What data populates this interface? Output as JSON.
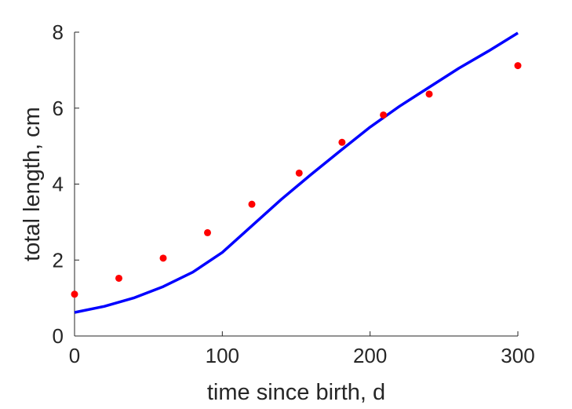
{
  "chart_data": {
    "type": "scatter",
    "title": "",
    "xlabel": "time since birth, d",
    "ylabel": "total length, cm",
    "xlim": [
      0,
      300
    ],
    "ylim": [
      0,
      8
    ],
    "xticks": [
      0,
      100,
      200,
      300
    ],
    "yticks": [
      0,
      2,
      4,
      6,
      8
    ],
    "grid": false,
    "legend": "none",
    "series": [
      {
        "kind": "points",
        "color": "#ff0000",
        "x": [
          0,
          30,
          60,
          90,
          120,
          152,
          181,
          209,
          240,
          300
        ],
        "y": [
          1.1,
          1.52,
          2.05,
          2.72,
          3.47,
          4.29,
          5.1,
          5.82,
          6.37,
          7.12
        ]
      },
      {
        "kind": "line",
        "color": "#0000ff",
        "x": [
          0,
          20,
          40,
          60,
          80,
          100,
          120,
          140,
          160,
          180,
          200,
          220,
          240,
          260,
          280,
          300
        ],
        "y": [
          0.62,
          0.78,
          1.0,
          1.3,
          1.68,
          2.2,
          2.9,
          3.6,
          4.25,
          4.88,
          5.5,
          6.05,
          6.55,
          7.05,
          7.5,
          7.98
        ]
      }
    ]
  }
}
